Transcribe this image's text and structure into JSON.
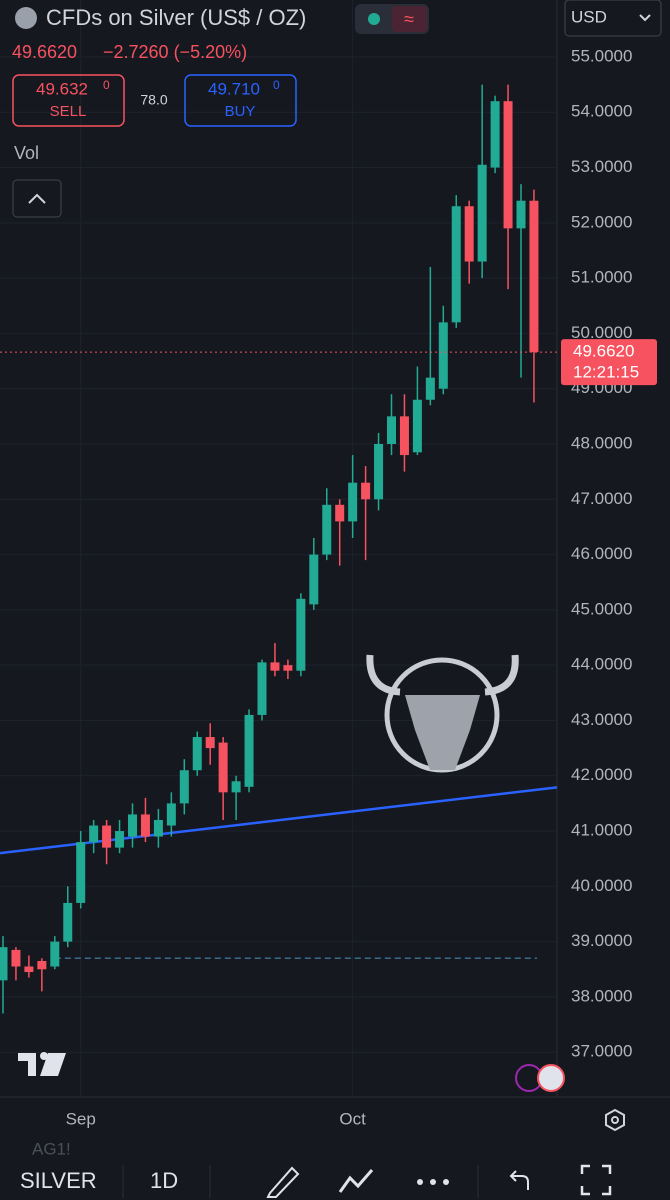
{
  "ui": {
    "title": "CFDs on Silver (US$ / OZ)",
    "price": "49.6620",
    "change": "−2.7260 (−5.20%)",
    "sell_price": "49.632",
    "sell_sup": "0",
    "sell_label": "SELL",
    "spread": "78.0",
    "buy_price": "49.710",
    "buy_sup": "0",
    "buy_label": "BUY",
    "vol_label": "Vol",
    "currency": "USD",
    "ticker_note": "AG1!",
    "symbol": "SILVER",
    "interval": "1D",
    "price_tag": "49.6620",
    "countdown": "12:21:15"
  },
  "chart_data": {
    "type": "candlestick",
    "categories": [
      null,
      null,
      null,
      null,
      null,
      null,
      "Sep",
      null,
      null,
      null,
      null,
      null,
      null,
      null,
      null,
      null,
      null,
      null,
      null,
      null,
      null,
      null,
      null,
      null,
      null,
      null,
      null,
      "Oct",
      null,
      null,
      null,
      null,
      null,
      null,
      null,
      null,
      null,
      null,
      null,
      null,
      null,
      null
    ],
    "open": [
      38.3,
      38.85,
      38.55,
      38.65,
      38.55,
      39.0,
      39.7,
      40.8,
      41.1,
      40.7,
      40.9,
      41.3,
      40.9,
      41.1,
      41.5,
      42.1,
      42.7,
      42.6,
      41.7,
      41.8,
      43.1,
      44.05,
      44.0,
      43.9,
      45.1,
      46.0,
      46.9,
      46.6,
      47.3,
      47.0,
      48.0,
      48.5,
      47.85,
      48.8,
      49.0,
      50.2,
      52.3,
      51.3,
      53.0,
      54.2,
      51.9,
      52.4
    ],
    "high": [
      39.1,
      38.9,
      38.75,
      38.7,
      39.1,
      40.0,
      41.0,
      41.2,
      41.2,
      41.2,
      41.5,
      41.6,
      41.4,
      41.7,
      42.3,
      42.8,
      42.95,
      42.7,
      42.0,
      43.2,
      44.1,
      44.4,
      44.1,
      45.3,
      46.3,
      47.2,
      47.0,
      47.8,
      47.6,
      48.2,
      48.9,
      48.9,
      49.4,
      51.2,
      50.5,
      52.5,
      52.4,
      54.5,
      54.3,
      54.5,
      52.7,
      52.6
    ],
    "low": [
      37.7,
      38.3,
      38.35,
      38.1,
      38.5,
      38.9,
      39.6,
      40.6,
      40.4,
      40.6,
      40.7,
      40.8,
      40.7,
      40.9,
      41.3,
      42.0,
      42.2,
      41.2,
      41.2,
      41.7,
      43.0,
      43.8,
      43.75,
      43.8,
      45.0,
      45.9,
      45.8,
      46.3,
      45.9,
      46.8,
      47.8,
      47.5,
      47.8,
      48.7,
      48.9,
      50.1,
      50.9,
      51.0,
      52.9,
      50.8,
      49.2,
      48.75
    ],
    "close": [
      38.9,
      38.55,
      38.45,
      38.5,
      39.0,
      39.7,
      40.8,
      41.1,
      40.7,
      41.0,
      41.3,
      40.9,
      41.2,
      41.5,
      42.1,
      42.7,
      42.5,
      41.7,
      41.9,
      43.1,
      44.05,
      43.9,
      43.9,
      45.2,
      46.0,
      46.9,
      46.6,
      47.3,
      47.0,
      48.0,
      48.5,
      47.8,
      48.8,
      49.2,
      50.2,
      52.3,
      51.3,
      53.05,
      54.2,
      51.9,
      52.4,
      49.662
    ],
    "up_color": "#22ab94",
    "down_color": "#f7525f",
    "ylim": [
      36.19,
      56.03
    ],
    "yticks": [
      {
        "value": 37,
        "label": "37.0000"
      },
      {
        "value": 38,
        "label": "38.0000"
      },
      {
        "value": 39,
        "label": "39.0000"
      },
      {
        "value": 40,
        "label": "40.0000"
      },
      {
        "value": 41,
        "label": "41.0000"
      },
      {
        "value": 42,
        "label": "42.0000"
      },
      {
        "value": 43,
        "label": "43.0000"
      },
      {
        "value": 44,
        "label": "44.0000"
      },
      {
        "value": 45,
        "label": "45.0000"
      },
      {
        "value": 46,
        "label": "46.0000"
      },
      {
        "value": 47,
        "label": "47.0000"
      },
      {
        "value": 48,
        "label": "48.0000"
      },
      {
        "value": 49,
        "label": "49.0000"
      },
      {
        "value": 50,
        "label": "50.0000"
      },
      {
        "value": 51,
        "label": "51.0000"
      },
      {
        "value": 52,
        "label": "52.0000"
      },
      {
        "value": 53,
        "label": "53.0000"
      },
      {
        "value": 54,
        "label": "54.0000"
      },
      {
        "value": 55,
        "label": "55.0000"
      }
    ],
    "trendline": {
      "start": 40.6,
      "end": 41.79,
      "color": "#2962ff"
    },
    "reference_line": 38.7,
    "current_price": 49.662,
    "grid": true
  }
}
